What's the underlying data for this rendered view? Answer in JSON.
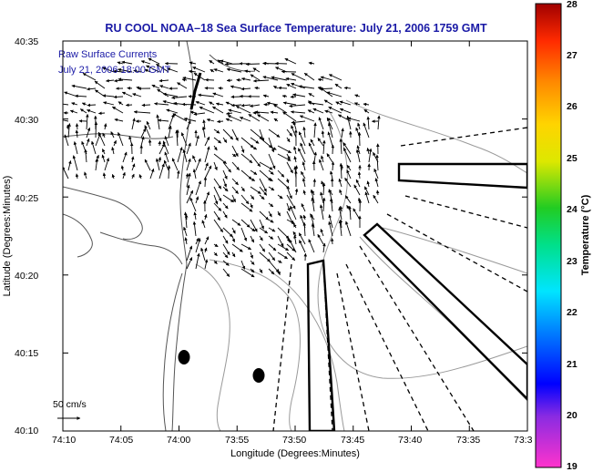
{
  "title": "RU COOL  NOAA–18  Sea Surface Temperature:  July 21, 2006 1759 GMT",
  "legend": {
    "line1": "Raw Surface Currents",
    "line2": "July 21, 2006 18:00 GMT",
    "scale_label": "50 cm/s"
  },
  "axes": {
    "xlabel": "Longitude (Degrees:Minutes)",
    "ylabel": "Latitude (Degrees:Minutes)",
    "x_ticks": [
      "74:10",
      "74:05",
      "74:00",
      "73:55",
      "73:50",
      "73:45",
      "73:40",
      "73:35",
      "73:3"
    ],
    "y_ticks": [
      "40:35",
      "40:30",
      "40:25",
      "40:20",
      "40:15",
      "40:10"
    ]
  },
  "colorbar": {
    "label": "Temperature (°C)",
    "ticks": [
      "28",
      "27",
      "26",
      "25",
      "24",
      "23",
      "22",
      "21",
      "20",
      "19"
    ],
    "min": 19,
    "max": 28
  },
  "colors": {
    "title": "#1a1aa6",
    "land_contour": "#555555",
    "bathymetry": "#9a9a9a",
    "arrows": "#000000"
  }
}
